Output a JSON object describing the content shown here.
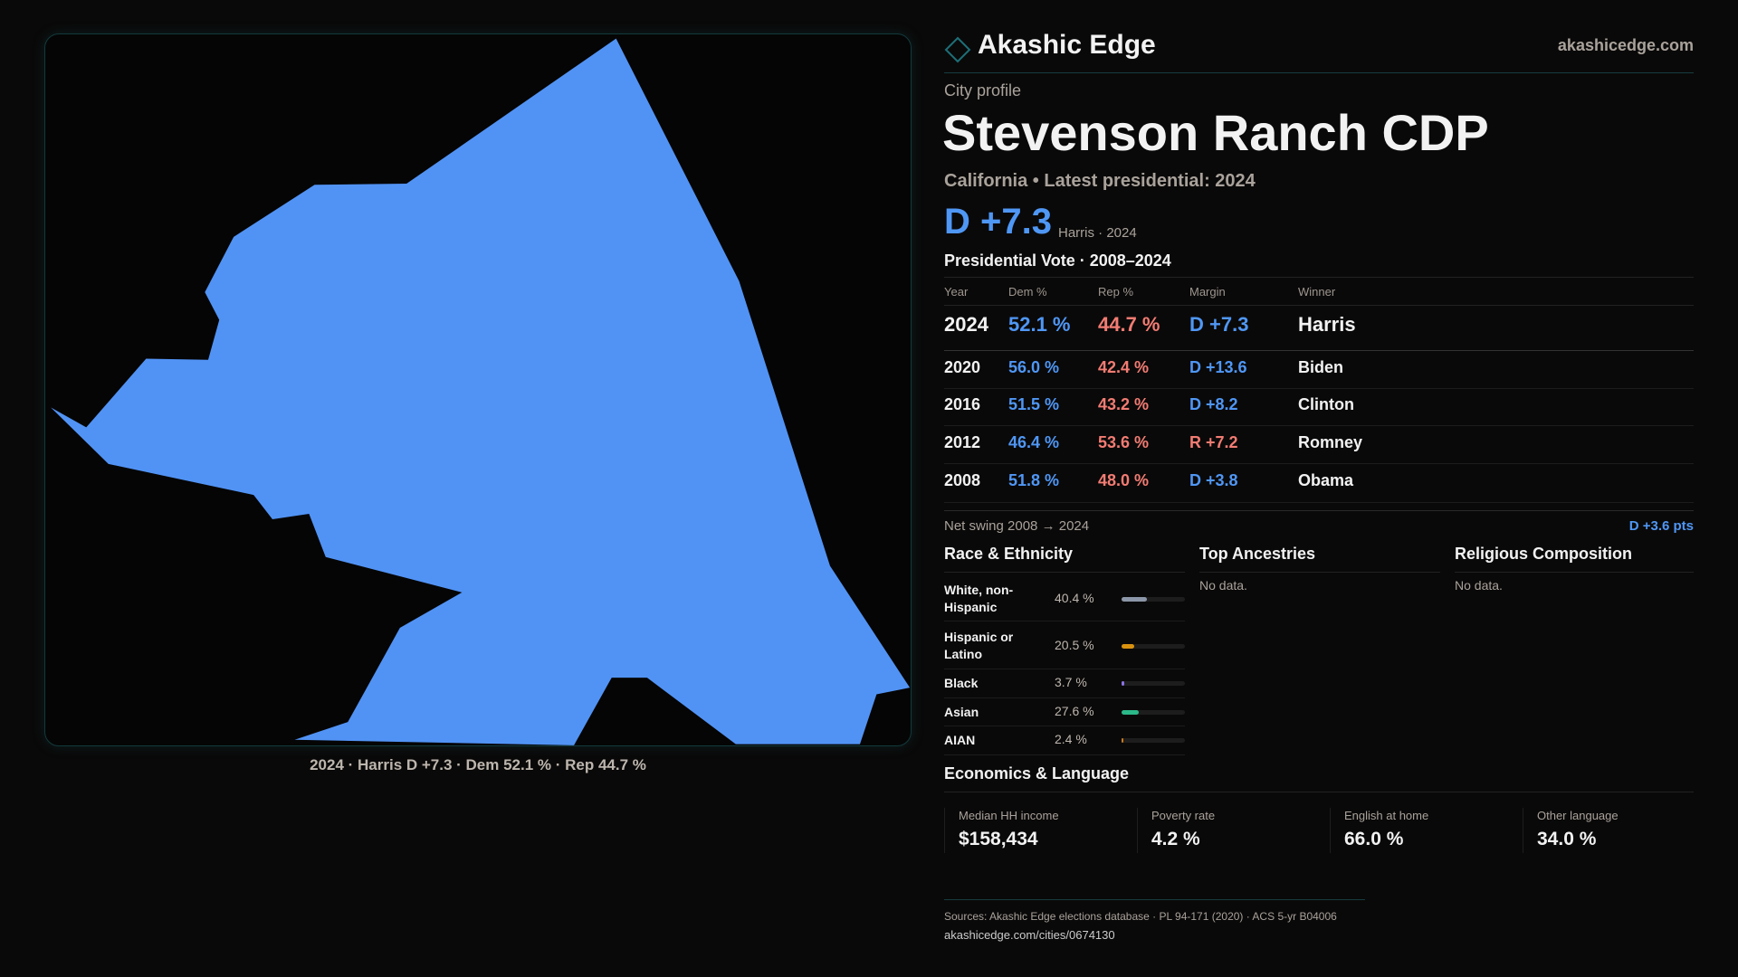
{
  "brand": {
    "name": "Akashic Edge",
    "site": "akashicedge.com"
  },
  "map": {
    "fill_color": "#5193f5",
    "caption": "2024 · Harris D +7.3 · Dem 52.1 % · Rep 44.7 %"
  },
  "header": {
    "kicker": "City profile",
    "title": "Stevenson Ranch CDP",
    "subtitle": "California • Latest presidential: 2024",
    "margin": "D +7.3",
    "margin_note": "Harris · 2024"
  },
  "votes": {
    "title": "Presidential Vote · 2008–2024",
    "columns": [
      "Year",
      "Dem %",
      "Rep %",
      "Margin",
      "Winner"
    ],
    "rows": [
      {
        "year": "2024",
        "dem": "52.1 %",
        "rep": "44.7 %",
        "margin": "D +7.3",
        "winner": "Harris",
        "party": "D"
      },
      {
        "year": "2020",
        "dem": "56.0 %",
        "rep": "42.4 %",
        "margin": "D +13.6",
        "winner": "Biden",
        "party": "D"
      },
      {
        "year": "2016",
        "dem": "51.5 %",
        "rep": "43.2 %",
        "margin": "D +8.2",
        "winner": "Clinton",
        "party": "D"
      },
      {
        "year": "2012",
        "dem": "46.4 %",
        "rep": "53.6 %",
        "margin": "R +7.2",
        "winner": "Romney",
        "party": "R"
      },
      {
        "year": "2008",
        "dem": "51.8 %",
        "rep": "48.0 %",
        "margin": "D +3.8",
        "winner": "Obama",
        "party": "D"
      }
    ],
    "swing_label": "Net swing 2008 → 2024",
    "swing_value": "D +3.6 pts"
  },
  "race": {
    "title": "Race & Ethnicity",
    "items": [
      {
        "label": "White, non-Hispanic",
        "value": "40.4 %",
        "pct": 40.4,
        "color": "#8b97a8"
      },
      {
        "label": "Hispanic or Latino",
        "value": "20.5 %",
        "pct": 20.5,
        "color": "#d9920f"
      },
      {
        "label": "Black",
        "value": "3.7 %",
        "pct": 3.7,
        "color": "#8a72e0"
      },
      {
        "label": "Asian",
        "value": "27.6 %",
        "pct": 27.6,
        "color": "#2bb98a"
      },
      {
        "label": "AIAN",
        "value": "2.4 %",
        "pct": 2.4,
        "color": "#c97a1e"
      }
    ]
  },
  "ancestries": {
    "title": "Top Ancestries",
    "empty": "No data."
  },
  "religion": {
    "title": "Religious Composition",
    "empty": "No data."
  },
  "economics": {
    "title": "Economics & Language",
    "stats": [
      {
        "label": "Median HH income",
        "value": "$158,434"
      },
      {
        "label": "Poverty rate",
        "value": "4.2 %"
      },
      {
        "label": "English at home",
        "value": "66.0 %"
      },
      {
        "label": "Other language",
        "value": "34.0 %"
      }
    ]
  },
  "footer": {
    "sources": "Sources: Akashic Edge elections database · PL 94-171 (2020) · ACS 5-yr B04006",
    "url": "akashicedge.com/cities/0674130"
  }
}
